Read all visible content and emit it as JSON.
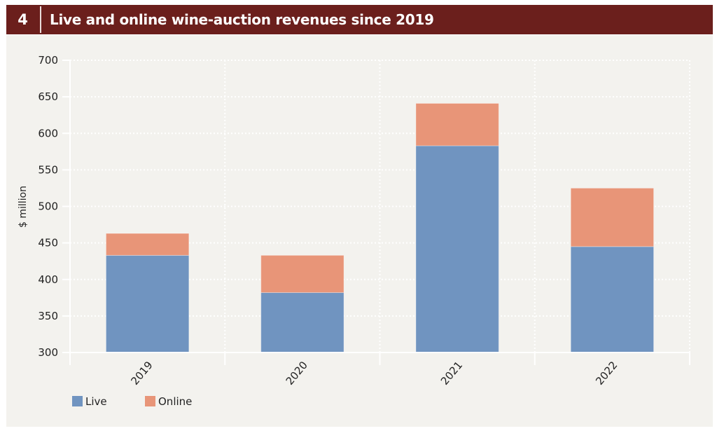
{
  "header": {
    "number": "4",
    "title": "Live and online wine-auction revenues since 2019"
  },
  "colors": {
    "header_bg": "#6b1f1c",
    "live": "#7094c0",
    "online": "#e89578",
    "panel_bg": "#f3f2ee"
  },
  "chart_data": {
    "type": "bar",
    "stacked": true,
    "title": "Live and online wine-auction revenues since 2019",
    "xlabel": "",
    "ylabel": "$ million",
    "categories": [
      "2019",
      "2020",
      "2021",
      "2022"
    ],
    "series": [
      {
        "name": "Live",
        "color": "#7094c0",
        "values": [
          433,
          382,
          583,
          445
        ]
      },
      {
        "name": "Online",
        "color": "#e89578",
        "values": [
          30,
          51,
          58,
          80
        ]
      }
    ],
    "ylim": [
      300,
      700
    ],
    "yticks": [
      300,
      350,
      400,
      450,
      500,
      550,
      600,
      650,
      700
    ],
    "grid": true,
    "legend": "bottom-left",
    "xtick_rotation": -50
  }
}
